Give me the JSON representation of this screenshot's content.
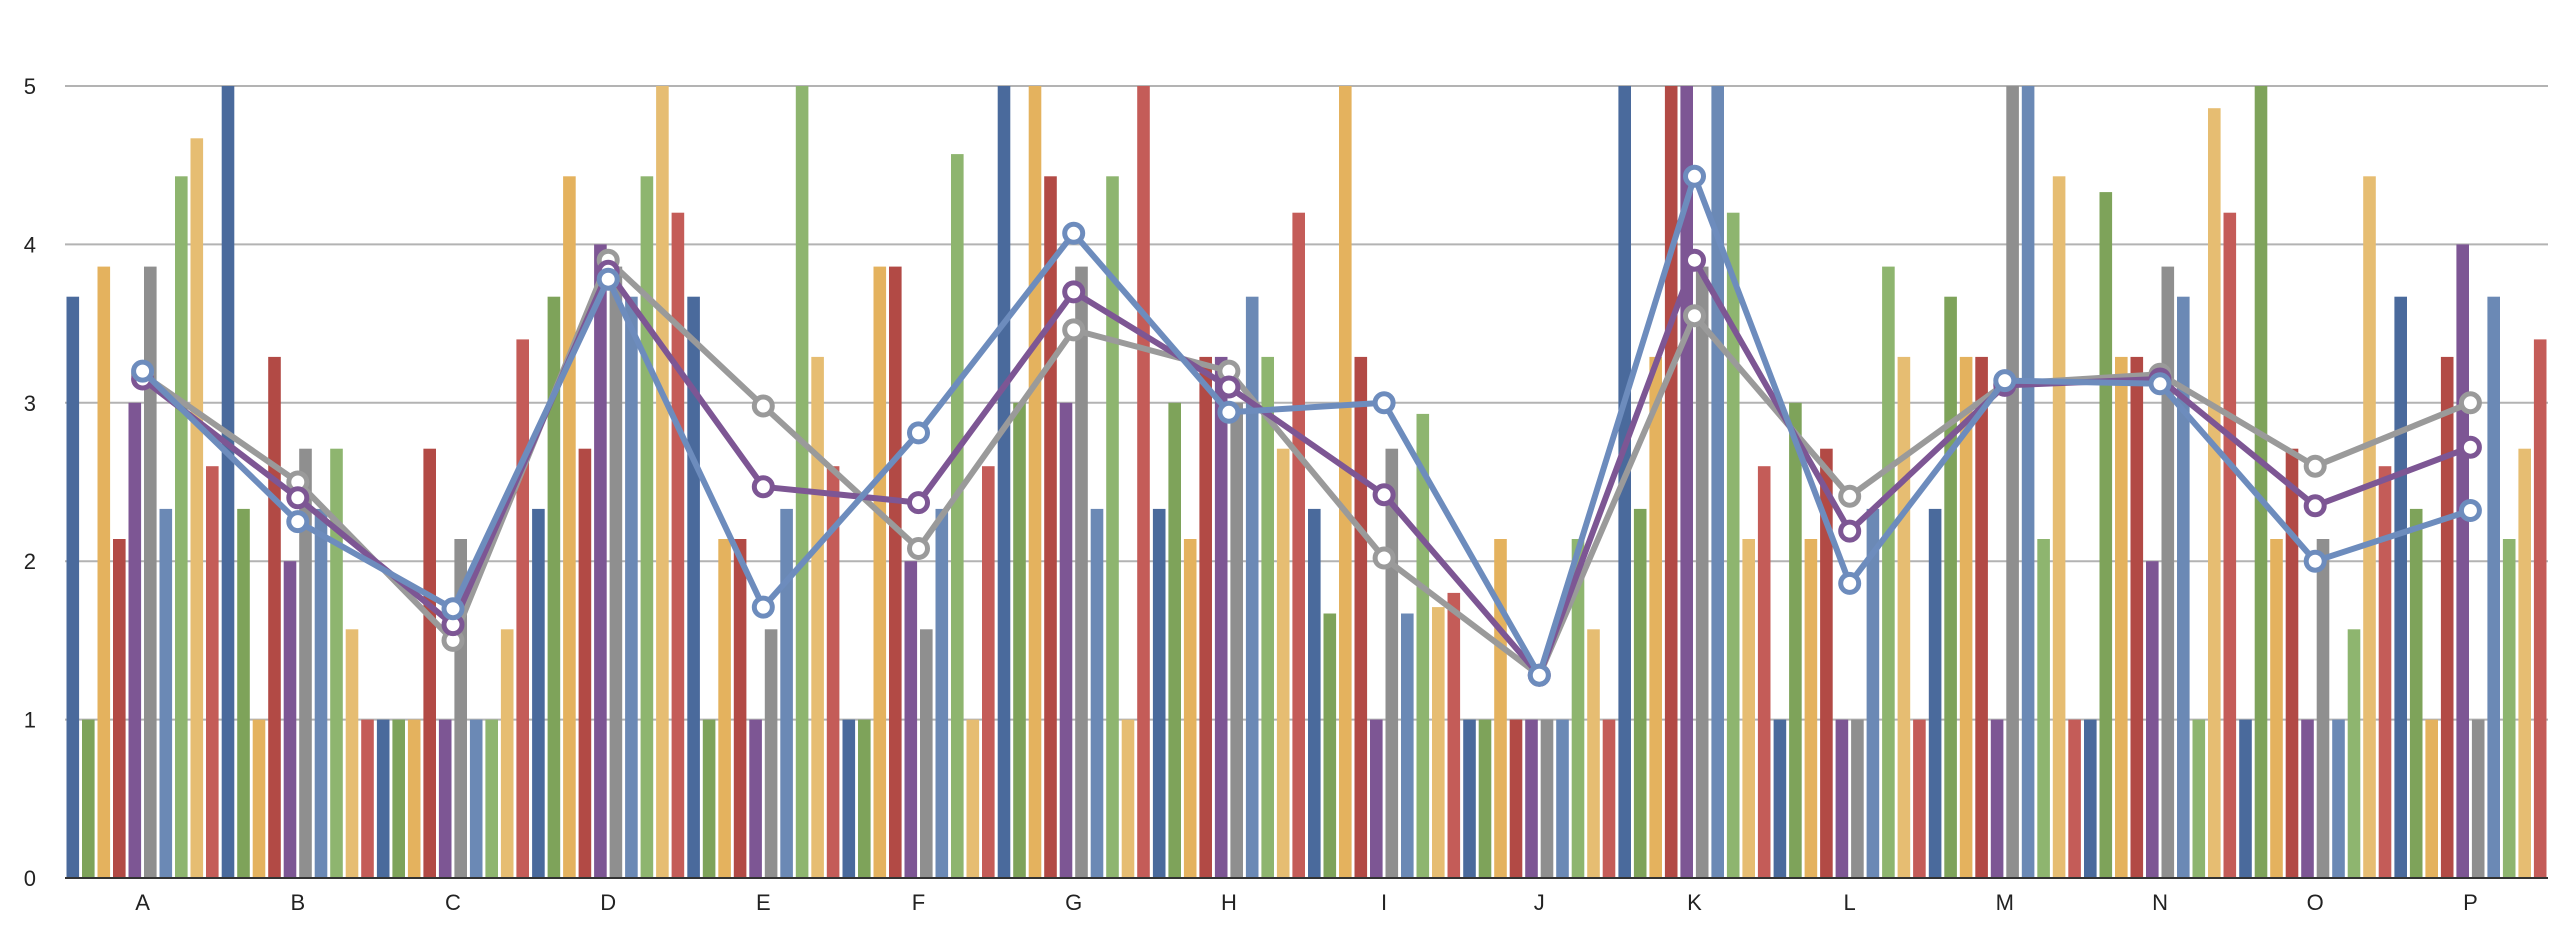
{
  "chart_data": {
    "type": "bar",
    "categories": [
      "A",
      "B",
      "C",
      "D",
      "E",
      "F",
      "G",
      "H",
      "I",
      "J",
      "K",
      "L",
      "M",
      "N",
      "O",
      "P"
    ],
    "yticks": [
      "0",
      "1",
      "2",
      "3",
      "4",
      "5"
    ],
    "ylim": [
      0,
      5
    ],
    "grid": true,
    "legend": "none",
    "colors": [
      "#4a6a9c",
      "#7ea35a",
      "#e4b25e",
      "#b24a45",
      "#7d5694",
      "#8f8f8f",
      "#6b89b5",
      "#8eb56f",
      "#e6bd72",
      "#c45c58"
    ],
    "line_colors": [
      "#9a9a9a",
      "#7d5694",
      "#6d8cbd"
    ],
    "bars": [
      [
        3.67,
        1.0,
        3.86,
        2.14,
        3.0,
        3.86,
        2.33,
        4.43,
        4.67,
        2.6
      ],
      [
        5.0,
        2.33,
        1.0,
        3.29,
        2.0,
        2.71,
        2.33,
        2.71,
        1.57,
        1.0
      ],
      [
        1.0,
        1.0,
        1.0,
        2.71,
        1.0,
        2.14,
        1.0,
        1.0,
        1.57,
        3.4
      ],
      [
        2.33,
        3.67,
        4.43,
        2.71,
        4.0,
        3.86,
        3.67,
        4.43,
        5.0,
        4.2
      ],
      [
        3.67,
        1.0,
        2.14,
        2.14,
        1.0,
        1.57,
        2.33,
        5.0,
        3.29,
        2.6
      ],
      [
        1.0,
        1.0,
        3.86,
        3.86,
        2.0,
        1.57,
        2.33,
        4.57,
        1.0,
        2.6
      ],
      [
        5.0,
        3.0,
        5.0,
        4.43,
        3.0,
        3.86,
        2.33,
        4.43,
        1.0,
        5.0
      ],
      [
        2.33,
        3.0,
        2.14,
        3.29,
        3.29,
        3.0,
        3.67,
        3.29,
        2.71,
        4.2
      ],
      [
        2.33,
        1.67,
        5.0,
        3.29,
        1.0,
        2.71,
        1.67,
        2.93,
        1.71,
        1.8
      ],
      [
        1.0,
        1.0,
        2.14,
        1.0,
        1.0,
        1.0,
        1.0,
        2.14,
        1.57,
        1.0
      ],
      [
        5.0,
        2.33,
        3.29,
        5.0,
        5.0,
        3.86,
        5.0,
        4.2,
        2.14,
        2.6
      ],
      [
        1.0,
        3.0,
        2.14,
        2.71,
        1.0,
        1.0,
        2.33,
        3.86,
        3.29,
        1.0
      ],
      [
        2.33,
        3.67,
        3.29,
        3.29,
        1.0,
        5.0,
        5.0,
        2.14,
        4.43,
        1.0
      ],
      [
        1.0,
        4.33,
        3.29,
        3.29,
        2.0,
        3.86,
        3.67,
        1.0,
        4.86,
        4.2
      ],
      [
        1.0,
        5.0,
        2.14,
        2.71,
        1.0,
        2.14,
        1.0,
        1.57,
        4.43,
        2.6
      ],
      [
        3.67,
        2.33,
        1.0,
        3.29,
        4.0,
        1.0,
        3.67,
        2.14,
        2.71,
        3.4
      ]
    ],
    "series": [
      {
        "values": [
          3.18,
          2.5,
          1.5,
          3.9,
          2.98,
          2.08,
          3.46,
          3.2,
          2.02,
          1.28,
          3.55,
          2.41,
          3.12,
          3.18,
          2.6,
          3.0
        ]
      },
      {
        "values": [
          3.15,
          2.4,
          1.6,
          3.83,
          2.47,
          2.37,
          3.7,
          3.1,
          2.42,
          1.28,
          3.9,
          2.19,
          3.11,
          3.15,
          2.35,
          2.72
        ]
      },
      {
        "values": [
          3.2,
          2.25,
          1.7,
          3.78,
          1.71,
          2.81,
          4.07,
          2.94,
          3.0,
          1.28,
          4.43,
          1.86,
          3.14,
          3.12,
          2.0,
          2.32
        ]
      }
    ]
  }
}
